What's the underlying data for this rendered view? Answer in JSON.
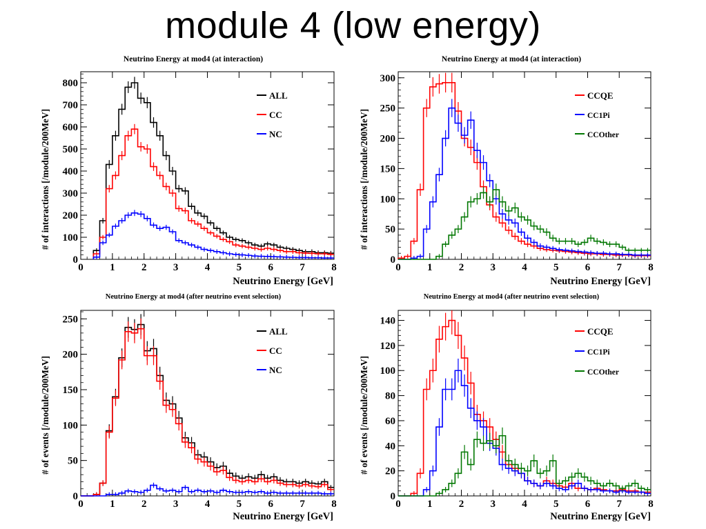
{
  "slide": {
    "title": "module 4 (low energy)"
  },
  "chart_data": [
    {
      "id": "tl",
      "type": "histogram",
      "title": "Neutrino Energy at mod4 (at interaction)",
      "xlabel": "Neutrino Energy [GeV]",
      "ylabel": "# of interactions [/module/200MeV]",
      "xlim": [
        0,
        8
      ],
      "ylim": [
        0,
        850
      ],
      "xticks": [
        0,
        1,
        2,
        3,
        4,
        5,
        6,
        7,
        8
      ],
      "yticks": [
        0,
        100,
        200,
        300,
        400,
        500,
        600,
        700,
        800
      ],
      "bin_width": 0.2,
      "x_start": 0.4,
      "legend_position": "top-right",
      "series": [
        {
          "name": "ALL",
          "color": "#000000",
          "values": [
            40,
            175,
            430,
            560,
            680,
            780,
            800,
            730,
            710,
            620,
            560,
            470,
            400,
            320,
            310,
            240,
            210,
            195,
            165,
            140,
            120,
            100,
            90,
            85,
            75,
            65,
            60,
            70,
            65,
            55,
            50,
            45,
            40,
            35,
            35,
            30,
            30,
            28
          ]
        },
        {
          "name": "CC",
          "color": "#ff0000",
          "values": [
            25,
            100,
            320,
            380,
            470,
            560,
            590,
            510,
            500,
            420,
            380,
            330,
            300,
            230,
            220,
            175,
            160,
            140,
            120,
            105,
            90,
            80,
            65,
            60,
            55,
            50,
            45,
            50,
            45,
            40,
            35,
            35,
            30,
            28,
            27,
            25,
            25,
            22
          ]
        },
        {
          "name": "NC",
          "color": "#0000ff",
          "values": [
            10,
            75,
            110,
            150,
            175,
            200,
            210,
            205,
            185,
            155,
            140,
            145,
            125,
            85,
            75,
            65,
            55,
            45,
            40,
            35,
            30,
            25,
            22,
            20,
            18,
            15,
            14,
            13,
            12,
            11,
            10,
            9,
            8,
            8,
            7,
            7,
            6,
            6
          ]
        }
      ]
    },
    {
      "id": "tr",
      "type": "histogram",
      "title": "Neutrino Energy at mod4 (at interaction)",
      "xlabel": "Neutrino Energy [GeV]",
      "ylabel": "# of interactions [/module/200MeV]",
      "xlim": [
        0,
        8
      ],
      "ylim": [
        0,
        310
      ],
      "xticks": [
        0,
        1,
        2,
        3,
        4,
        5,
        6,
        7,
        8
      ],
      "yticks": [
        0,
        50,
        100,
        150,
        200,
        250,
        300
      ],
      "bin_width": 0.2,
      "x_start": 0.0,
      "legend_position": "top-right",
      "series": [
        {
          "name": "CCQE",
          "color": "#ff0000",
          "values": [
            2,
            5,
            30,
            115,
            250,
            285,
            290,
            292,
            292,
            245,
            200,
            185,
            160,
            120,
            90,
            70,
            60,
            48,
            38,
            30,
            25,
            22,
            18,
            16,
            15,
            14,
            13,
            12,
            11,
            10,
            9,
            9,
            8,
            8,
            7,
            7,
            7,
            6,
            6,
            6
          ]
        },
        {
          "name": "CC1Pi",
          "color": "#0000ff",
          "values": [
            0,
            0,
            2,
            5,
            50,
            95,
            140,
            200,
            250,
            225,
            205,
            230,
            180,
            160,
            130,
            100,
            75,
            65,
            60,
            45,
            35,
            28,
            22,
            20,
            18,
            16,
            15,
            14,
            13,
            12,
            11,
            10,
            10,
            9,
            9,
            8,
            8,
            7,
            7,
            7
          ]
        },
        {
          "name": "CCOther",
          "color": "#007700",
          "values": [
            0,
            0,
            0,
            0,
            0,
            0,
            5,
            25,
            40,
            50,
            70,
            95,
            100,
            110,
            95,
            115,
            95,
            80,
            85,
            70,
            65,
            55,
            50,
            45,
            35,
            30,
            30,
            30,
            25,
            28,
            35,
            30,
            28,
            25,
            25,
            20,
            15,
            15,
            15,
            15
          ]
        }
      ]
    },
    {
      "id": "bl",
      "type": "histogram",
      "title": "Neutrino Energy at mod4 (after neutrino event selection)",
      "xlabel": "Neutrino Energy [GeV]",
      "ylabel": "# of events [/module/200MeV]",
      "xlim": [
        0,
        8
      ],
      "ylim": [
        0,
        262
      ],
      "xticks": [
        0,
        1,
        2,
        3,
        4,
        5,
        6,
        7,
        8
      ],
      "yticks": [
        0,
        50,
        100,
        150,
        200,
        250
      ],
      "bin_width": 0.2,
      "x_start": 0.0,
      "legend_position": "top-right",
      "series": [
        {
          "name": "ALL",
          "color": "#000000",
          "values": [
            0,
            0,
            2,
            18,
            92,
            140,
            195,
            238,
            235,
            242,
            205,
            208,
            170,
            135,
            130,
            110,
            82,
            75,
            58,
            55,
            48,
            40,
            42,
            32,
            28,
            25,
            27,
            25,
            30,
            25,
            27,
            22,
            20,
            20,
            18,
            20,
            18,
            17,
            20,
            12
          ]
        },
        {
          "name": "CC",
          "color": "#ff0000",
          "values": [
            0,
            0,
            2,
            18,
            90,
            138,
            192,
            232,
            230,
            236,
            198,
            198,
            162,
            128,
            122,
            102,
            76,
            68,
            52,
            48,
            42,
            34,
            36,
            26,
            22,
            20,
            22,
            20,
            24,
            20,
            22,
            18,
            16,
            16,
            14,
            16,
            14,
            13,
            16,
            9
          ]
        },
        {
          "name": "NC",
          "color": "#0000ff",
          "values": [
            0,
            0,
            0,
            0,
            2,
            2,
            4,
            7,
            6,
            5,
            8,
            15,
            10,
            7,
            8,
            6,
            12,
            6,
            8,
            6,
            7,
            5,
            8,
            6,
            5,
            5,
            6,
            5,
            6,
            4,
            5,
            4,
            4,
            4,
            4,
            4,
            4,
            4,
            3,
            3
          ]
        }
      ]
    },
    {
      "id": "br",
      "type": "histogram",
      "title": "Neutrino Energy at mod4 (after neutrino event selection)",
      "xlabel": "Neutrino Energy [GeV]",
      "ylabel": "# of events [/module/200MeV]",
      "xlim": [
        0,
        8
      ],
      "ylim": [
        0,
        148
      ],
      "xticks": [
        0,
        1,
        2,
        3,
        4,
        5,
        6,
        7,
        8
      ],
      "yticks": [
        0,
        20,
        40,
        60,
        80,
        100,
        120,
        140
      ],
      "bin_width": 0.2,
      "x_start": 0.0,
      "legend_position": "top-right",
      "series": [
        {
          "name": "CCQE",
          "color": "#ff0000",
          "values": [
            0,
            0,
            2,
            18,
            85,
            100,
            125,
            135,
            140,
            128,
            110,
            90,
            65,
            60,
            55,
            45,
            35,
            25,
            22,
            18,
            12,
            10,
            8,
            12,
            10,
            8,
            7,
            10,
            6,
            6,
            5,
            6,
            5,
            4,
            4,
            5,
            4,
            4,
            3,
            3
          ]
        },
        {
          "name": "CC1Pi",
          "color": "#0000ff",
          "values": [
            0,
            0,
            0,
            0,
            5,
            20,
            55,
            85,
            85,
            100,
            88,
            70,
            60,
            55,
            42,
            38,
            25,
            22,
            20,
            18,
            12,
            10,
            8,
            10,
            8,
            6,
            5,
            8,
            10,
            6,
            5,
            5,
            4,
            4,
            3,
            4,
            3,
            3,
            3,
            2
          ]
        },
        {
          "name": "CCOther",
          "color": "#007700",
          "values": [
            0,
            0,
            0,
            0,
            0,
            0,
            2,
            5,
            10,
            18,
            35,
            25,
            45,
            42,
            44,
            40,
            48,
            28,
            25,
            22,
            20,
            28,
            18,
            20,
            28,
            10,
            12,
            15,
            18,
            15,
            12,
            10,
            8,
            10,
            8,
            6,
            8,
            10,
            6,
            5
          ]
        }
      ]
    }
  ]
}
